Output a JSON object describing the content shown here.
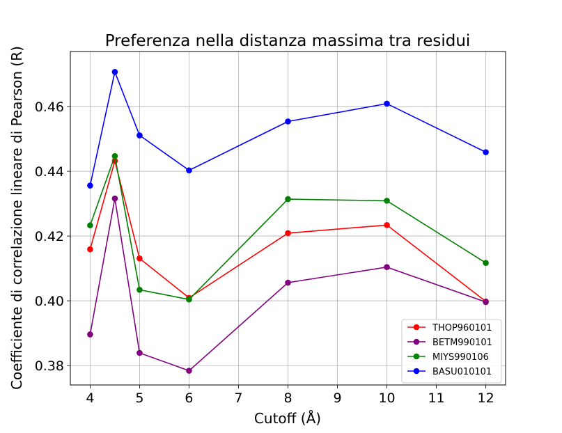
{
  "chart_data": {
    "type": "line",
    "title": "Preferenza nella distanza massima tra residui",
    "xlabel": "Cutoff (Å)",
    "ylabel": "Coefficiente di correlazione lineare di Pearson (R)",
    "xlim": [
      3.6,
      12.4
    ],
    "ylim": [
      0.374,
      0.477
    ],
    "xticks": [
      4,
      5,
      6,
      7,
      8,
      9,
      10,
      11,
      12
    ],
    "yticks": [
      0.38,
      0.4,
      0.42,
      0.44,
      0.46
    ],
    "ytick_labels": [
      "0.38",
      "0.40",
      "0.42",
      "0.44",
      "0.46"
    ],
    "grid": true,
    "legend_position": "lower-right",
    "x": [
      4,
      4.5,
      5,
      6,
      8,
      10,
      12
    ],
    "series": [
      {
        "name": "THOP960101",
        "color": "#ff0000",
        "values": [
          0.4159,
          0.4432,
          0.4131,
          0.4009,
          0.4209,
          0.4234,
          0.3998
        ]
      },
      {
        "name": "BETM990101",
        "color": "#800080",
        "values": [
          0.3896,
          0.4316,
          0.3839,
          0.3784,
          0.4056,
          0.4104,
          0.3996
        ]
      },
      {
        "name": "MIYS990106",
        "color": "#008000",
        "values": [
          0.4233,
          0.4447,
          0.4034,
          0.4004,
          0.4314,
          0.4309,
          0.4117
        ]
      },
      {
        "name": "BASU010101",
        "color": "#0000ff",
        "values": [
          0.4356,
          0.4707,
          0.4511,
          0.4403,
          0.4554,
          0.4609,
          0.4459
        ]
      }
    ]
  }
}
